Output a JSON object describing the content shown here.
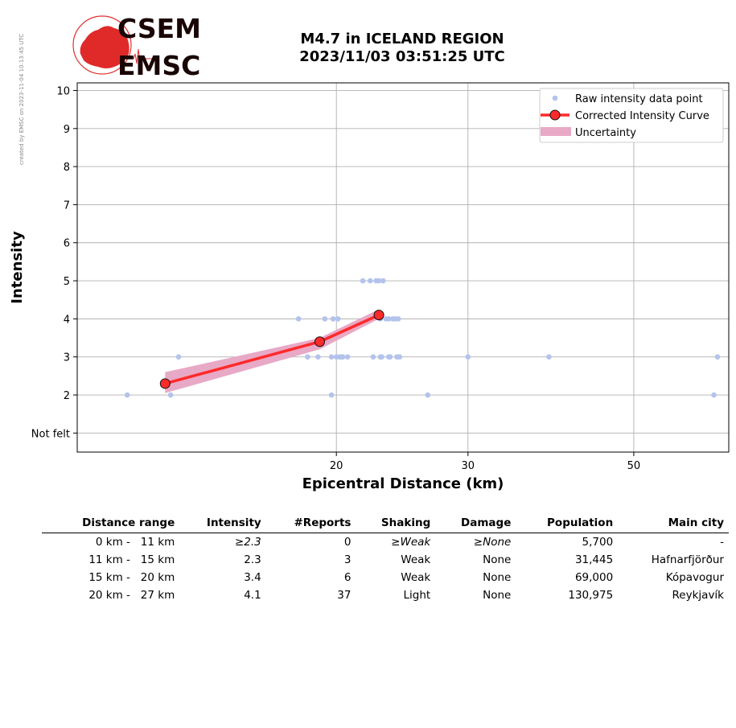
{
  "credit": "created by EMSC on 2023-11-04 10:13:45 UTC",
  "logo": {
    "top": "CSEM",
    "bottom": "EMSC"
  },
  "title": {
    "line1": "M4.7 in ICELAND REGION",
    "line2": "2023/11/03 03:51:25 UTC"
  },
  "colors": {
    "raw": "#b3c3ec",
    "curve": "#ff2a2a",
    "uncertainty": "#e8a9c6",
    "grid": "#b0b0b0"
  },
  "chart_data": {
    "type": "scatter",
    "xlabel": "Epicentral Distance (km)",
    "ylabel": "Intensity",
    "x_scale": "log",
    "xlim": [
      9.0,
      67.0
    ],
    "ylim": [
      0.5,
      10.2
    ],
    "x_ticks": [
      20,
      30,
      50
    ],
    "y_ticks": [
      1,
      2,
      3,
      4,
      5,
      6,
      7,
      8,
      9,
      10
    ],
    "y_tick_labels": [
      "Not felt",
      "2",
      "3",
      "4",
      "5",
      "6",
      "7",
      "8",
      "9",
      "10"
    ],
    "grid": true,
    "legend_placement": "top-right",
    "legend": [
      "Raw intensity data point",
      "Corrected Intensity Curve",
      "Uncertainty"
    ],
    "raw_points": [
      {
        "x": 10.5,
        "y": 2
      },
      {
        "x": 12.0,
        "y": 2
      },
      {
        "x": 12.3,
        "y": 3
      },
      {
        "x": 17.8,
        "y": 4
      },
      {
        "x": 18.3,
        "y": 3
      },
      {
        "x": 18.9,
        "y": 3
      },
      {
        "x": 19.3,
        "y": 4
      },
      {
        "x": 19.7,
        "y": 3
      },
      {
        "x": 19.7,
        "y": 2
      },
      {
        "x": 19.8,
        "y": 4
      },
      {
        "x": 20.0,
        "y": 3
      },
      {
        "x": 20.1,
        "y": 4
      },
      {
        "x": 20.2,
        "y": 3
      },
      {
        "x": 20.3,
        "y": 3
      },
      {
        "x": 20.4,
        "y": 3
      },
      {
        "x": 20.7,
        "y": 3
      },
      {
        "x": 21.7,
        "y": 5
      },
      {
        "x": 22.2,
        "y": 5
      },
      {
        "x": 22.4,
        "y": 3
      },
      {
        "x": 22.6,
        "y": 5
      },
      {
        "x": 22.8,
        "y": 5
      },
      {
        "x": 22.9,
        "y": 4
      },
      {
        "x": 22.9,
        "y": 3
      },
      {
        "x": 23.0,
        "y": 3
      },
      {
        "x": 23.1,
        "y": 5
      },
      {
        "x": 23.3,
        "y": 4
      },
      {
        "x": 23.5,
        "y": 4
      },
      {
        "x": 23.5,
        "y": 3
      },
      {
        "x": 23.6,
        "y": 3
      },
      {
        "x": 23.8,
        "y": 4
      },
      {
        "x": 24.0,
        "y": 4
      },
      {
        "x": 24.1,
        "y": 3
      },
      {
        "x": 24.2,
        "y": 4
      },
      {
        "x": 24.3,
        "y": 3
      },
      {
        "x": 26.5,
        "y": 2
      },
      {
        "x": 30.0,
        "y": 3
      },
      {
        "x": 38.5,
        "y": 3
      },
      {
        "x": 64.0,
        "y": 2
      },
      {
        "x": 64.7,
        "y": 3
      }
    ],
    "curve": [
      {
        "x": 11.8,
        "y": 2.3
      },
      {
        "x": 19.0,
        "y": 3.4
      },
      {
        "x": 22.8,
        "y": 4.1
      }
    ],
    "uncertainty_upper": [
      {
        "x": 11.8,
        "y": 2.6
      },
      {
        "x": 19.0,
        "y": 3.5
      },
      {
        "x": 22.8,
        "y": 4.25
      }
    ],
    "uncertainty_lower": [
      {
        "x": 11.8,
        "y": 2.05
      },
      {
        "x": 19.0,
        "y": 3.2
      },
      {
        "x": 22.8,
        "y": 4.0
      }
    ]
  },
  "table": {
    "headers": [
      "Distance range",
      "Intensity",
      "#Reports",
      "Shaking",
      "Damage",
      "Population",
      "Main city"
    ],
    "rows": [
      {
        "range": "0 km -   11 km",
        "intensity": "≥2.3",
        "reports": "0",
        "shaking": "≥Weak",
        "damage": "≥None",
        "population": "5,700",
        "city": "-"
      },
      {
        "range": "11 km -   15 km",
        "intensity": "2.3",
        "reports": "3",
        "shaking": "Weak",
        "damage": "None",
        "population": "31,445",
        "city": "Hafnarfjörður"
      },
      {
        "range": "15 km -   20 km",
        "intensity": "3.4",
        "reports": "6",
        "shaking": "Weak",
        "damage": "None",
        "population": "69,000",
        "city": "Kópavogur"
      },
      {
        "range": "20 km -   27 km",
        "intensity": "4.1",
        "reports": "37",
        "shaking": "Light",
        "damage": "None",
        "population": "130,975",
        "city": "Reykjavík"
      }
    ]
  }
}
